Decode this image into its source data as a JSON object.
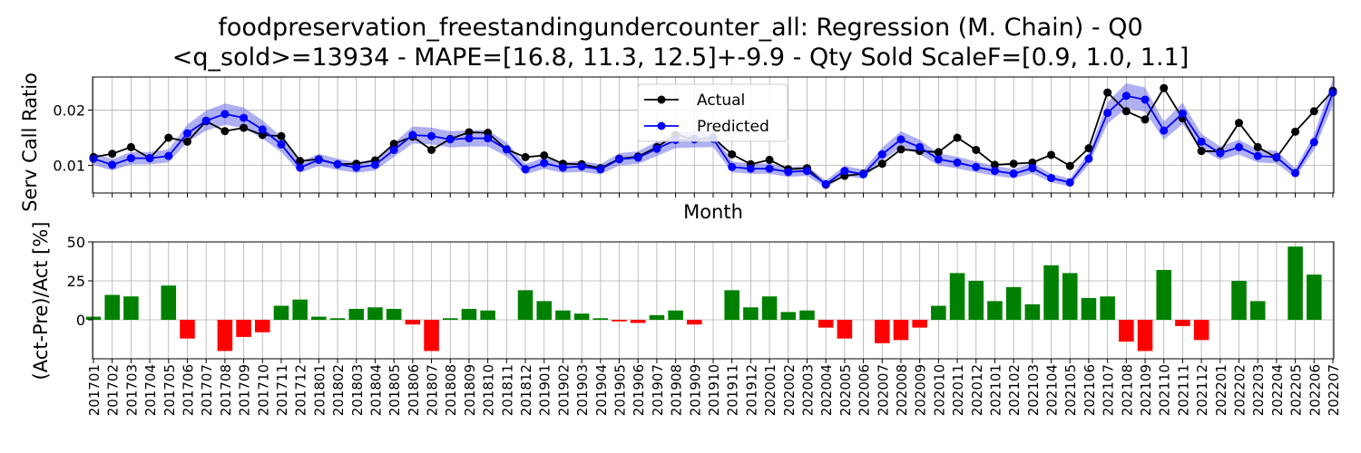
{
  "title_line1": "foodpreservation_freestandingundercounter_all: Regression (M. Chain) - Q0",
  "title_line2": "<q_sold>=13934 - MAPE=[16.8, 11.3, 12.5]+-9.9 - Qty Sold ScaleF=[0.9, 1.0, 1.1]",
  "chart_data": [
    {
      "type": "line",
      "ylabel": "Serv Call Ratio",
      "xlabel": "Month",
      "ylim": [
        0.005,
        0.026
      ],
      "yticks": [
        0.01,
        0.02
      ],
      "ytick_labels": [
        "0.01",
        "0.02"
      ],
      "grid": true,
      "legend_position": "top-center",
      "colors": {
        "actual": "#000000",
        "predicted": "#0000ff",
        "band": "#6060e8"
      },
      "series": [
        {
          "name": "Actual",
          "values": [
            0.0115,
            0.0121,
            0.0133,
            0.0113,
            0.015,
            0.0143,
            0.018,
            0.0162,
            0.0168,
            0.0155,
            0.0153,
            0.0108,
            0.0111,
            0.0102,
            0.0103,
            0.0109,
            0.0139,
            0.0152,
            0.0128,
            0.0148,
            0.016,
            0.0159,
            0.0129,
            0.0115,
            0.0118,
            0.0103,
            0.0102,
            0.0095,
            0.0112,
            0.0116,
            0.0133,
            0.0155,
            0.0148,
            0.015,
            0.012,
            0.0102,
            0.011,
            0.0093,
            0.0095,
            0.0065,
            0.0081,
            0.0085,
            0.0103,
            0.0129,
            0.0126,
            0.0124,
            0.015,
            0.0128,
            0.0101,
            0.0103,
            0.0105,
            0.0119,
            0.0099,
            0.0131,
            0.0232,
            0.0198,
            0.0183,
            0.024,
            0.0185,
            0.0126,
            0.0125,
            0.0177,
            0.0133,
            0.0114,
            0.0161,
            0.0198,
            0.0235
          ]
        },
        {
          "name": "Predicted",
          "values": [
            0.0112,
            0.0101,
            0.0113,
            0.0113,
            0.0117,
            0.0158,
            0.0181,
            0.0193,
            0.0186,
            0.0165,
            0.0138,
            0.0096,
            0.011,
            0.0102,
            0.0096,
            0.0101,
            0.0128,
            0.0155,
            0.0153,
            0.0147,
            0.0149,
            0.0149,
            0.0129,
            0.0093,
            0.0104,
            0.0096,
            0.0098,
            0.0093,
            0.0111,
            0.0114,
            0.013,
            0.0146,
            0.0147,
            0.0148,
            0.0097,
            0.0094,
            0.0094,
            0.0088,
            0.009,
            0.0066,
            0.009,
            0.0084,
            0.012,
            0.0147,
            0.0133,
            0.0111,
            0.0105,
            0.0097,
            0.009,
            0.0085,
            0.0095,
            0.0077,
            0.0069,
            0.0112,
            0.0195,
            0.0226,
            0.0219,
            0.0163,
            0.0194,
            0.0143,
            0.0122,
            0.0133,
            0.0117,
            0.0115,
            0.0086,
            0.0142,
            0.0232
          ]
        }
      ],
      "band": {
        "name": "Predicted range",
        "lower_factor": 0.9,
        "upper_factor": 1.1
      }
    },
    {
      "type": "bar",
      "ylabel": "(Act-Pre)/Act [%]",
      "ylim": [
        -25,
        50
      ],
      "yticks": [
        0,
        25,
        50
      ],
      "ytick_labels": [
        "0",
        "25",
        "50"
      ],
      "grid": true,
      "colors": {
        "positive": "#008000",
        "negative": "#ff0000"
      },
      "categories": [
        "201701",
        "201702",
        "201703",
        "201704",
        "201705",
        "201706",
        "201707",
        "201708",
        "201709",
        "201710",
        "201711",
        "201712",
        "201801",
        "201802",
        "201803",
        "201804",
        "201805",
        "201806",
        "201807",
        "201808",
        "201809",
        "201810",
        "201811",
        "201812",
        "201901",
        "201902",
        "201903",
        "201904",
        "201905",
        "201906",
        "201907",
        "201908",
        "201909",
        "201910",
        "201911",
        "201912",
        "202001",
        "202002",
        "202003",
        "202004",
        "202005",
        "202006",
        "202007",
        "202008",
        "202009",
        "202010",
        "202011",
        "202012",
        "202101",
        "202102",
        "202103",
        "202104",
        "202105",
        "202106",
        "202107",
        "202108",
        "202109",
        "202110",
        "202111",
        "202112",
        "202201",
        "202202",
        "202203",
        "202204",
        "202205",
        "202206",
        "202207"
      ],
      "values": [
        2,
        16,
        15,
        0,
        22,
        -12,
        0,
        -20,
        -11,
        -8,
        9,
        13,
        2,
        1,
        7,
        8,
        7,
        -3,
        -20,
        1,
        7,
        6,
        0,
        19,
        12,
        6,
        4,
        1,
        -1,
        -2,
        3,
        6,
        -3,
        0,
        19,
        8,
        15,
        5,
        6,
        -5,
        -12,
        0,
        -15,
        -13,
        -5,
        9,
        30,
        25,
        12,
        21,
        10,
        35,
        30,
        14,
        15,
        -14,
        -20,
        32,
        -4,
        -13,
        0,
        25,
        12,
        0,
        47,
        29,
        0
      ]
    }
  ]
}
